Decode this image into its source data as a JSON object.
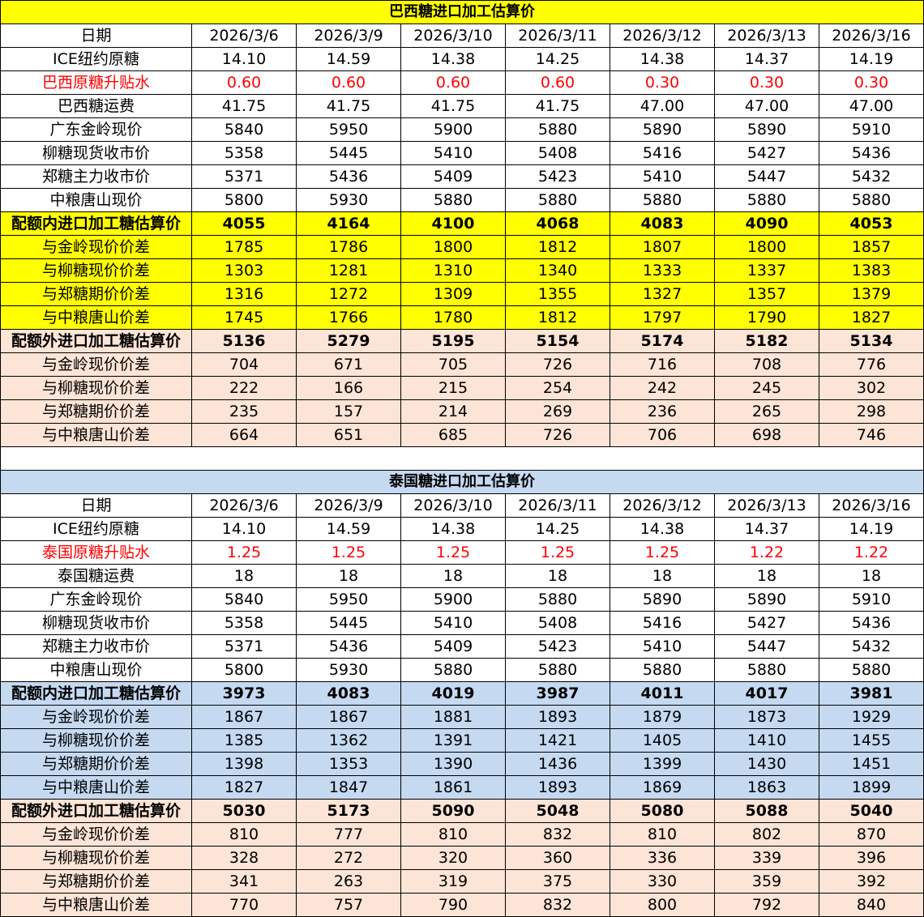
{
  "colors": {
    "yellow": "#FFFF00",
    "peach": "#FCE4D6",
    "blue": "#C5D9F1",
    "red": "#FF0000"
  },
  "sections": [
    {
      "title": "巴西糖进口加工估算价",
      "title_style": "t-yellow",
      "rows": [
        {
          "label": "日期",
          "style": "",
          "values": [
            "2026/3/6",
            "2026/3/9",
            "2026/3/10",
            "2026/3/11",
            "2026/3/12",
            "2026/3/13",
            "2026/3/16"
          ]
        },
        {
          "label": "ICE纽约原糖",
          "style": "",
          "values": [
            "14.10",
            "14.59",
            "14.38",
            "14.25",
            "14.38",
            "14.37",
            "14.19"
          ]
        },
        {
          "label": "巴西原糖升贴水",
          "style": "red",
          "values": [
            "0.60",
            "0.60",
            "0.60",
            "0.60",
            "0.30",
            "0.30",
            "0.30"
          ]
        },
        {
          "label": "巴西糖运费",
          "style": "",
          "values": [
            "41.75",
            "41.75",
            "41.75",
            "41.75",
            "47.00",
            "47.00",
            "47.00"
          ]
        },
        {
          "label": "广东金岭现价",
          "style": "",
          "values": [
            "5840",
            "5950",
            "5900",
            "5880",
            "5890",
            "5890",
            "5910"
          ]
        },
        {
          "label": "柳糖现货收市价",
          "style": "",
          "values": [
            "5358",
            "5445",
            "5410",
            "5408",
            "5416",
            "5427",
            "5436"
          ]
        },
        {
          "label": "郑糖主力收市价",
          "style": "",
          "values": [
            "5371",
            "5436",
            "5409",
            "5423",
            "5410",
            "5447",
            "5432"
          ]
        },
        {
          "label": "中粮唐山现价",
          "style": "",
          "values": [
            "5800",
            "5930",
            "5880",
            "5880",
            "5880",
            "5880",
            "5880"
          ]
        },
        {
          "label": "配额内进口加工糖估算价",
          "style": "yellow bold",
          "values": [
            "4055",
            "4164",
            "4100",
            "4068",
            "4083",
            "4090",
            "4053"
          ]
        },
        {
          "label": "与金岭现价价差",
          "style": "yellow",
          "values": [
            "1785",
            "1786",
            "1800",
            "1812",
            "1807",
            "1800",
            "1857"
          ]
        },
        {
          "label": "与柳糖现价价差",
          "style": "yellow",
          "values": [
            "1303",
            "1281",
            "1310",
            "1340",
            "1333",
            "1337",
            "1383"
          ]
        },
        {
          "label": "与郑糖期价价差",
          "style": "yellow",
          "values": [
            "1316",
            "1272",
            "1309",
            "1355",
            "1327",
            "1357",
            "1379"
          ]
        },
        {
          "label": "与中粮唐山价差",
          "style": "yellow",
          "values": [
            "1745",
            "1766",
            "1780",
            "1812",
            "1797",
            "1790",
            "1827"
          ]
        },
        {
          "label": "配额外进口加工糖估算价",
          "style": "peach bold",
          "values": [
            "5136",
            "5279",
            "5195",
            "5154",
            "5174",
            "5182",
            "5134"
          ]
        },
        {
          "label": "与金岭现价价差",
          "style": "peach",
          "values": [
            "704",
            "671",
            "705",
            "726",
            "716",
            "708",
            "776"
          ]
        },
        {
          "label": "与柳糖现价价差",
          "style": "peach",
          "values": [
            "222",
            "166",
            "215",
            "254",
            "242",
            "245",
            "302"
          ]
        },
        {
          "label": "与郑糖期价价差",
          "style": "peach",
          "values": [
            "235",
            "157",
            "214",
            "269",
            "236",
            "265",
            "298"
          ]
        },
        {
          "label": "与中粮唐山价差",
          "style": "peach",
          "values": [
            "664",
            "651",
            "685",
            "726",
            "706",
            "698",
            "746"
          ]
        }
      ]
    },
    {
      "title": "泰国糖进口加工估算价",
      "title_style": "t-blue",
      "rows": [
        {
          "label": "日期",
          "style": "",
          "values": [
            "2026/3/6",
            "2026/3/9",
            "2026/3/10",
            "2026/3/11",
            "2026/3/12",
            "2026/3/13",
            "2026/3/16"
          ]
        },
        {
          "label": "ICE纽约原糖",
          "style": "",
          "values": [
            "14.10",
            "14.59",
            "14.38",
            "14.25",
            "14.38",
            "14.37",
            "14.19"
          ]
        },
        {
          "label": "泰国原糖升贴水",
          "style": "red",
          "values": [
            "1.25",
            "1.25",
            "1.25",
            "1.25",
            "1.25",
            "1.22",
            "1.22"
          ]
        },
        {
          "label": "泰国糖运费",
          "style": "",
          "values": [
            "18",
            "18",
            "18",
            "18",
            "18",
            "18",
            "18"
          ]
        },
        {
          "label": "广东金岭现价",
          "style": "",
          "values": [
            "5840",
            "5950",
            "5900",
            "5880",
            "5890",
            "5890",
            "5910"
          ]
        },
        {
          "label": "柳糖现货收市价",
          "style": "",
          "values": [
            "5358",
            "5445",
            "5410",
            "5408",
            "5416",
            "5427",
            "5436"
          ]
        },
        {
          "label": "郑糖主力收市价",
          "style": "",
          "values": [
            "5371",
            "5436",
            "5409",
            "5423",
            "5410",
            "5447",
            "5432"
          ]
        },
        {
          "label": "中粮唐山现价",
          "style": "",
          "values": [
            "5800",
            "5930",
            "5880",
            "5880",
            "5880",
            "5880",
            "5880"
          ]
        },
        {
          "label": "配额内进口加工糖估算价",
          "style": "blue bold",
          "values": [
            "3973",
            "4083",
            "4019",
            "3987",
            "4011",
            "4017",
            "3981"
          ]
        },
        {
          "label": "与金岭现价价差",
          "style": "blue",
          "values": [
            "1867",
            "1867",
            "1881",
            "1893",
            "1879",
            "1873",
            "1929"
          ]
        },
        {
          "label": "与柳糖现价价差",
          "style": "blue",
          "values": [
            "1385",
            "1362",
            "1391",
            "1421",
            "1405",
            "1410",
            "1455"
          ]
        },
        {
          "label": "与郑糖期价价差",
          "style": "blue",
          "values": [
            "1398",
            "1353",
            "1390",
            "1436",
            "1399",
            "1430",
            "1451"
          ]
        },
        {
          "label": "与中粮唐山价差",
          "style": "blue",
          "values": [
            "1827",
            "1847",
            "1861",
            "1893",
            "1869",
            "1863",
            "1899"
          ]
        },
        {
          "label": "配额外进口加工糖估算价",
          "style": "peach bold",
          "values": [
            "5030",
            "5173",
            "5090",
            "5048",
            "5080",
            "5088",
            "5040"
          ]
        },
        {
          "label": "与金岭现价价差",
          "style": "peach",
          "values": [
            "810",
            "777",
            "810",
            "832",
            "810",
            "802",
            "870"
          ]
        },
        {
          "label": "与柳糖现价价差",
          "style": "peach",
          "values": [
            "328",
            "272",
            "320",
            "360",
            "336",
            "339",
            "396"
          ]
        },
        {
          "label": "与郑糖期价价差",
          "style": "peach",
          "values": [
            "341",
            "263",
            "319",
            "375",
            "330",
            "359",
            "392"
          ]
        },
        {
          "label": "与中粮唐山价差",
          "style": "peach",
          "values": [
            "770",
            "757",
            "790",
            "832",
            "800",
            "792",
            "840"
          ]
        }
      ]
    }
  ]
}
